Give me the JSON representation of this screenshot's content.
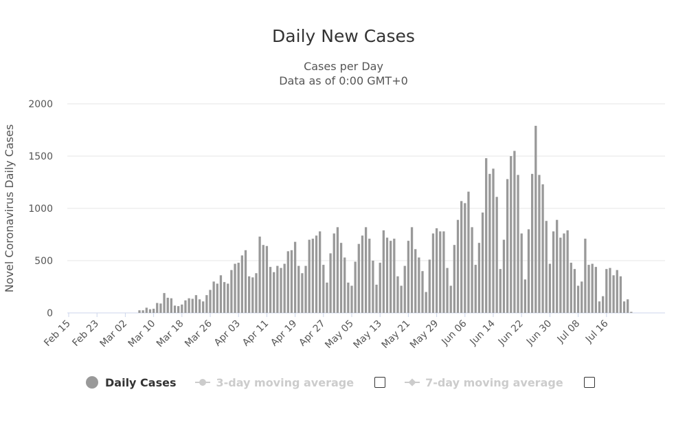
{
  "title": "Daily New Cases",
  "subtitle_line1": "Cases per Day",
  "subtitle_line2": "Data as of 0:00 GMT+0",
  "legend": {
    "items": [
      {
        "label": "Daily Cases",
        "active": true,
        "color": "#999999"
      },
      {
        "label": "3-day moving average",
        "active": false,
        "color": "#cccccc"
      },
      {
        "label": "7-day moving average",
        "active": false,
        "color": "#cccccc"
      }
    ]
  },
  "chart_data": {
    "type": "bar",
    "ylabel": "Novel Coronavirus Daily Cases",
    "ylim": [
      0,
      2000
    ],
    "yticks": [
      0,
      500,
      1000,
      1500,
      2000
    ],
    "grid": true,
    "bar_color": "#999999",
    "xtick_labels": [
      "Feb 15",
      "Feb 23",
      "Mar 02",
      "Mar 10",
      "Mar 18",
      "Mar 26",
      "Apr 03",
      "Apr 11",
      "Apr 19",
      "Apr 27",
      "May 05",
      "May 13",
      "May 21",
      "May 29",
      "Jun 06",
      "Jun 14",
      "Jun 22",
      "Jun 30",
      "Jul 08",
      "Jul 16"
    ],
    "start_label": "Feb 15",
    "values": [
      0,
      0,
      0,
      0,
      0,
      0,
      0,
      0,
      0,
      0,
      0,
      0,
      0,
      0,
      0,
      0,
      0,
      0,
      0,
      0,
      25,
      25,
      50,
      35,
      40,
      95,
      90,
      190,
      145,
      140,
      70,
      65,
      80,
      120,
      140,
      135,
      170,
      130,
      110,
      170,
      220,
      300,
      280,
      360,
      295,
      280,
      410,
      470,
      480,
      550,
      600,
      350,
      340,
      380,
      730,
      650,
      640,
      440,
      390,
      450,
      430,
      470,
      590,
      600,
      680,
      450,
      380,
      450,
      700,
      710,
      740,
      780,
      460,
      290,
      570,
      760,
      820,
      670,
      530,
      290,
      260,
      490,
      660,
      740,
      820,
      710,
      500,
      270,
      480,
      790,
      720,
      690,
      710,
      350,
      260,
      450,
      690,
      820,
      610,
      530,
      400,
      200,
      510,
      760,
      810,
      780,
      780,
      430,
      260,
      650,
      890,
      1070,
      1050,
      1160,
      820,
      460,
      670,
      960,
      1480,
      1330,
      1380,
      1110,
      420,
      700,
      1280,
      1500,
      1550,
      1320,
      760,
      320,
      800,
      1330,
      1790,
      1320,
      1230,
      880,
      470,
      780,
      890,
      720,
      760,
      790,
      480,
      420,
      260,
      300,
      710,
      460,
      470,
      440,
      110,
      160,
      420,
      430,
      360,
      410,
      350,
      110,
      130,
      10
    ]
  }
}
